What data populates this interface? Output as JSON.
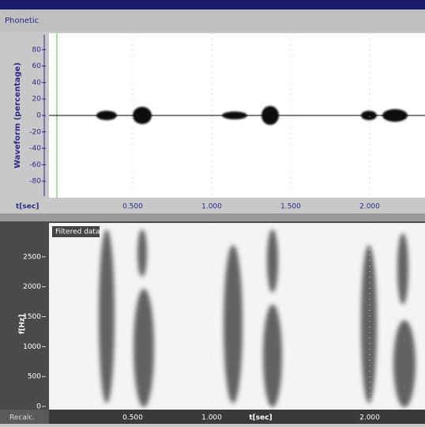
{
  "window": {
    "title": "Phonetic"
  },
  "waveform": {
    "y_label": "Waveform (percentage)",
    "x_label": "t[sec]",
    "ylim": [
      -100,
      100
    ],
    "yticks": [
      80,
      60,
      40,
      20,
      0,
      -20,
      -40,
      -60,
      -80
    ],
    "xlim": [
      0,
      2.35
    ],
    "xticks": [
      {
        "value": 0.5,
        "label": "0.500"
      },
      {
        "value": 1.0,
        "label": "1.000"
      },
      {
        "value": 1.5,
        "label": "1.500"
      },
      {
        "value": 2.0,
        "label": "2.000"
      }
    ]
  },
  "spectrogram": {
    "badge": "Filtered data",
    "y_label": "f[Hz]",
    "x_label": "t[sec]",
    "button": "Recalc.",
    "ylim": [
      0,
      3000
    ],
    "yticks": [
      0,
      500,
      1000,
      1500,
      2000,
      2500
    ],
    "xlim": [
      0,
      2.35
    ],
    "xticks": [
      {
        "value": 0.5,
        "label": "0.500"
      },
      {
        "value": 1.0,
        "label": "1.000"
      },
      {
        "value": 2.0,
        "label": "2.000"
      }
    ]
  }
}
